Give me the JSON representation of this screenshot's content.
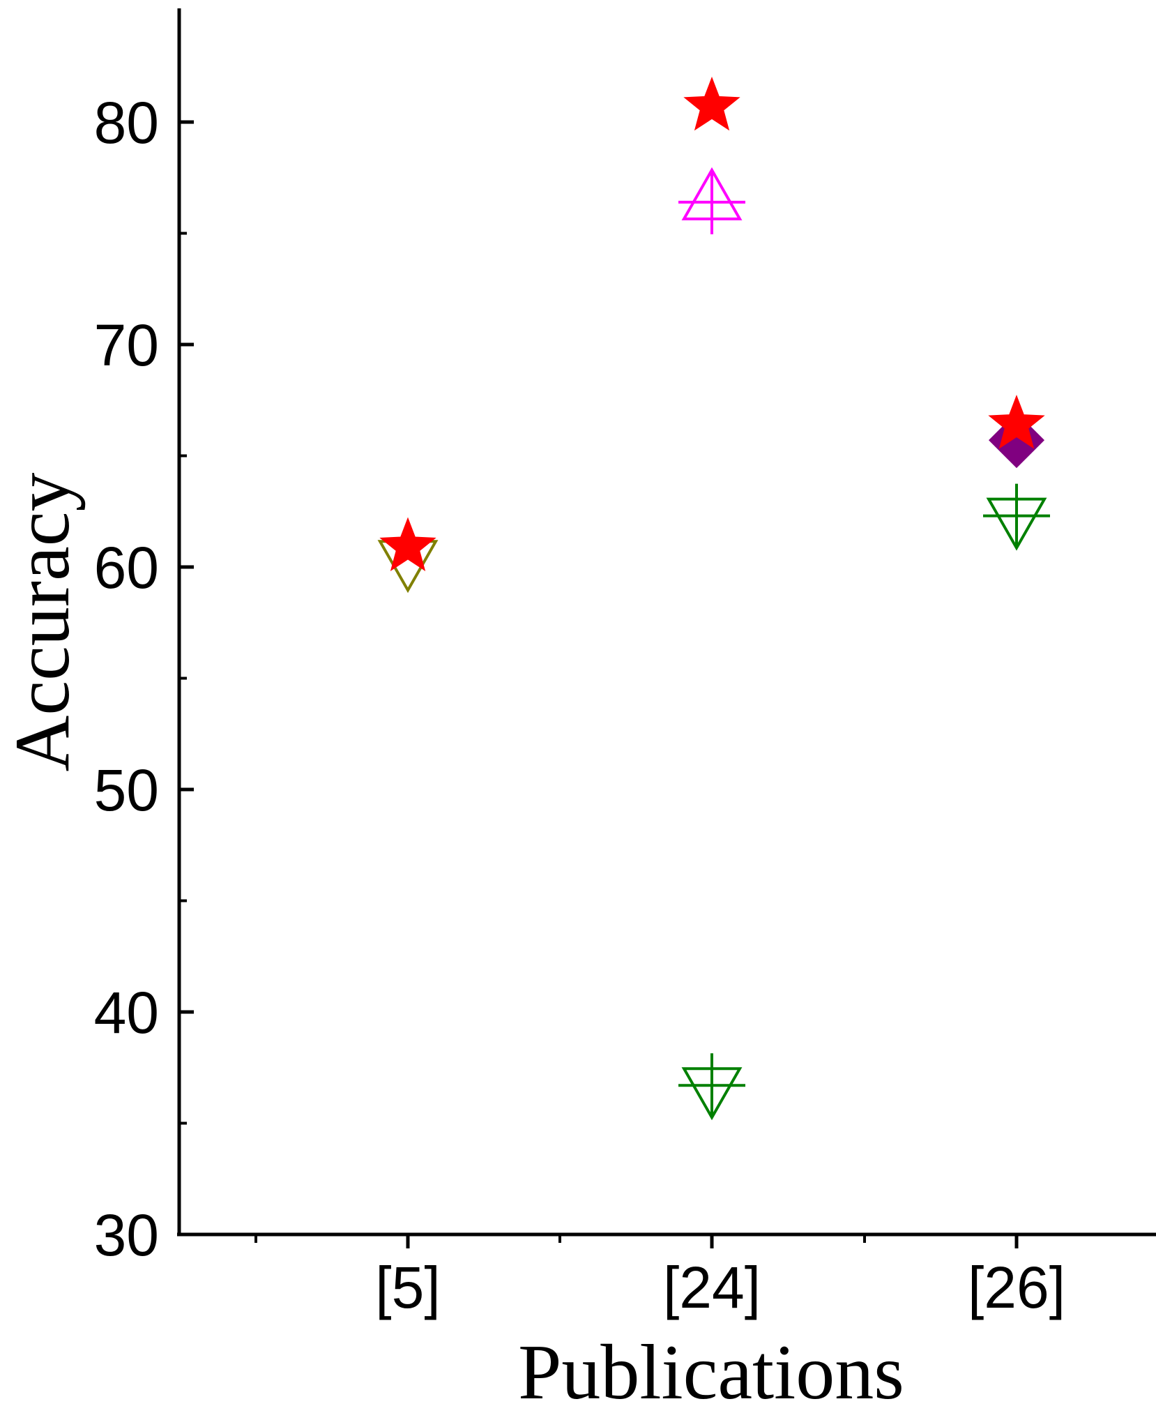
{
  "chart_data": {
    "type": "scatter",
    "xlabel": "Publications",
    "ylabel": "Accuracy",
    "categories": [
      "[5]",
      "[24]",
      "[26]"
    ],
    "ylim": [
      30,
      85
    ],
    "yticks": [
      30,
      40,
      50,
      60,
      70,
      80
    ],
    "grid": false,
    "legend": "none",
    "points": [
      {
        "category": "[5]",
        "value": 60.4,
        "marker": "triangle-down",
        "color": "#808000"
      },
      {
        "category": "[5]",
        "value": 60.9,
        "marker": "star",
        "color": "#ff0000"
      },
      {
        "category": "[24]",
        "value": 80.7,
        "marker": "star",
        "color": "#ff0000"
      },
      {
        "category": "[24]",
        "value": 76.4,
        "marker": "triangle-up-cross",
        "color": "#ff00ff"
      },
      {
        "category": "[24]",
        "value": 36.7,
        "marker": "triangle-down-cross",
        "color": "#008000"
      },
      {
        "category": "[26]",
        "value": 65.7,
        "marker": "diamond",
        "color": "#800080"
      },
      {
        "category": "[26]",
        "value": 66.4,
        "marker": "star",
        "color": "#ff0000"
      },
      {
        "category": "[26]",
        "value": 62.3,
        "marker": "triangle-down-cross",
        "color": "#008000"
      }
    ]
  }
}
